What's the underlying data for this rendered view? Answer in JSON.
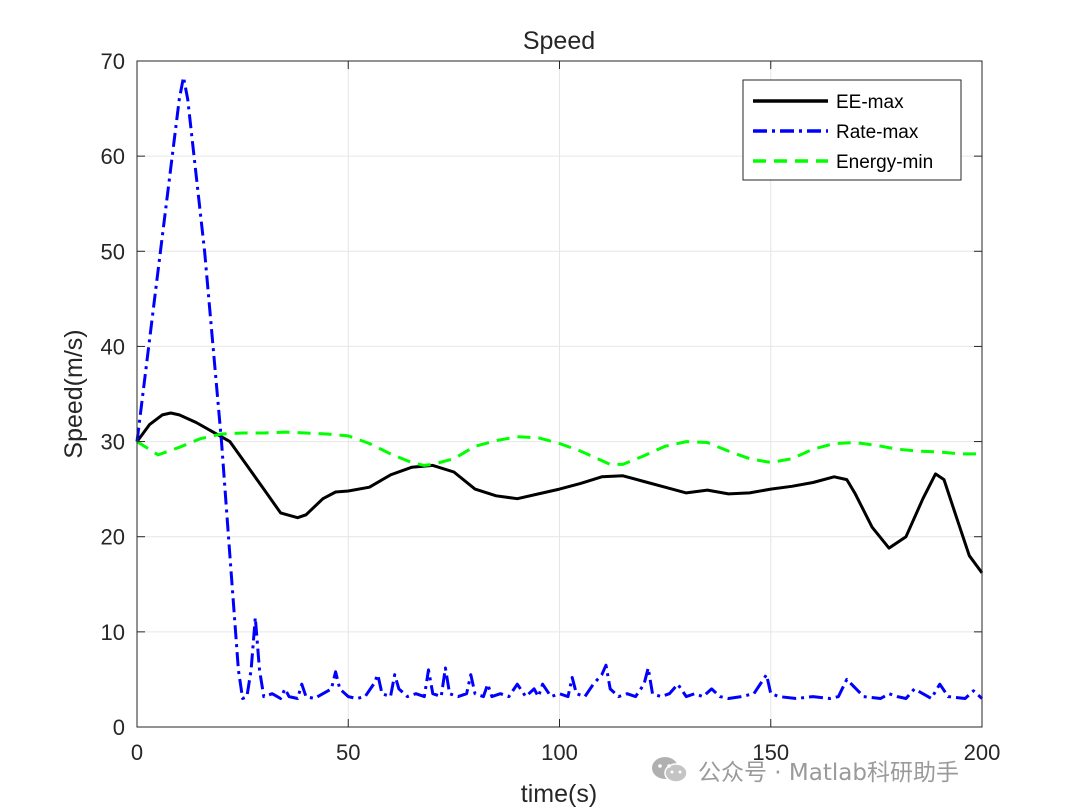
{
  "chart_data": {
    "type": "line",
    "title": "Speed",
    "xlabel": "time(s)",
    "ylabel": "Speed(m/s)",
    "xlim": [
      0,
      200
    ],
    "ylim": [
      0,
      70
    ],
    "xticks": [
      0,
      50,
      100,
      150,
      200
    ],
    "yticks": [
      0,
      10,
      20,
      30,
      40,
      50,
      60,
      70
    ],
    "grid": true,
    "legend_position": "top-right",
    "series": [
      {
        "name": "EE-max",
        "color": "#000000",
        "style": "solid",
        "x": [
          0,
          3,
          6,
          8,
          10,
          14,
          18,
          22,
          26,
          30,
          34,
          38,
          40,
          44,
          47,
          50,
          55,
          60,
          65,
          70,
          75,
          80,
          85,
          90,
          95,
          100,
          105,
          110,
          115,
          120,
          125,
          130,
          135,
          140,
          145,
          150,
          155,
          160,
          165,
          168,
          170,
          174,
          178,
          182,
          186,
          189,
          191,
          194,
          197,
          200
        ],
        "y": [
          30,
          31.8,
          32.8,
          33,
          32.8,
          32,
          31,
          30,
          27.5,
          25,
          22.5,
          22,
          22.3,
          24,
          24.7,
          24.8,
          25.2,
          26.5,
          27.3,
          27.5,
          26.8,
          25,
          24.3,
          24,
          24.5,
          25,
          25.6,
          26.3,
          26.4,
          25.8,
          25.2,
          24.6,
          24.9,
          24.5,
          24.6,
          25,
          25.3,
          25.7,
          26.3,
          26,
          24.5,
          21,
          18.8,
          20,
          24,
          26.6,
          26,
          22,
          18,
          16.2
        ]
      },
      {
        "name": "Rate-max",
        "color": "#0000ff",
        "style": "dash-dot",
        "x": [
          0,
          5,
          10,
          11,
          12,
          16,
          20,
          22,
          24,
          25,
          26,
          27,
          28,
          29,
          30,
          32,
          34,
          35,
          36,
          38,
          39,
          40,
          42,
          44,
          46,
          47,
          48,
          50,
          52,
          54,
          56,
          57,
          58,
          60,
          61,
          62,
          64,
          66,
          68,
          69,
          70,
          72,
          73,
          74,
          76,
          78,
          79,
          80,
          82,
          83,
          84,
          86,
          88,
          90,
          92,
          94,
          95,
          96,
          98,
          100,
          102,
          103,
          104,
          106,
          108,
          110,
          111,
          112,
          114,
          116,
          118,
          120,
          121,
          122,
          124,
          126,
          128,
          130,
          132,
          134,
          136,
          138,
          140,
          143,
          146,
          149,
          150,
          152,
          156,
          160,
          164,
          166,
          168,
          172,
          176,
          178,
          180,
          182,
          184,
          188,
          190,
          192,
          196,
          198,
          200
        ],
        "y": [
          30,
          48,
          66,
          68.3,
          66,
          50,
          30,
          18,
          6,
          3,
          3.2,
          6,
          11.5,
          6,
          3.2,
          3.5,
          3,
          4,
          3.2,
          3,
          4.5,
          3.2,
          3,
          3.5,
          4,
          5.8,
          4,
          3.2,
          3,
          3.2,
          4.5,
          5.5,
          3.5,
          3.2,
          5.5,
          4,
          3.2,
          3.5,
          3.2,
          6,
          3.5,
          3.2,
          6.2,
          3.5,
          3.2,
          3.5,
          5.5,
          3.5,
          3.2,
          4.5,
          3.2,
          3.5,
          3.2,
          4.5,
          3.2,
          4,
          3.2,
          4.5,
          3.2,
          3.5,
          3.2,
          5.2,
          3.5,
          3.2,
          4.5,
          5.5,
          6.5,
          4,
          3.2,
          3.5,
          3.2,
          4.5,
          6.2,
          3.5,
          3.2,
          3.5,
          4.5,
          3.2,
          3.5,
          3.2,
          4,
          3.2,
          3,
          3.2,
          3.5,
          5.5,
          3.5,
          3.2,
          3,
          3.2,
          3,
          3.2,
          5,
          3.2,
          3,
          3.5,
          3.2,
          3,
          4,
          3,
          4.5,
          3.2,
          3,
          3.8,
          3
        ]
      },
      {
        "name": "Energy-min",
        "color": "#00ff00",
        "style": "dashed",
        "x": [
          0,
          5,
          10,
          15,
          20,
          25,
          30,
          35,
          40,
          45,
          50,
          55,
          60,
          65,
          68,
          70,
          75,
          80,
          85,
          90,
          95,
          100,
          105,
          110,
          112,
          115,
          120,
          125,
          130,
          135,
          140,
          145,
          150,
          155,
          160,
          165,
          170,
          175,
          180,
          185,
          190,
          195,
          200
        ],
        "y": [
          30,
          28.6,
          29.4,
          30.3,
          30.8,
          30.9,
          30.9,
          31,
          30.9,
          30.8,
          30.6,
          29.8,
          28.7,
          27.8,
          27.5,
          27.6,
          28.2,
          29.5,
          30.1,
          30.5,
          30.4,
          29.8,
          29,
          28,
          27.6,
          27.6,
          28.5,
          29.5,
          30,
          29.9,
          29,
          28.2,
          27.8,
          28.2,
          29.2,
          29.8,
          29.9,
          29.6,
          29.2,
          29,
          28.9,
          28.7,
          28.7
        ]
      }
    ]
  },
  "watermark": {
    "text": "公众号 · Matlab科研助手",
    "icon": "wechat-icon"
  }
}
